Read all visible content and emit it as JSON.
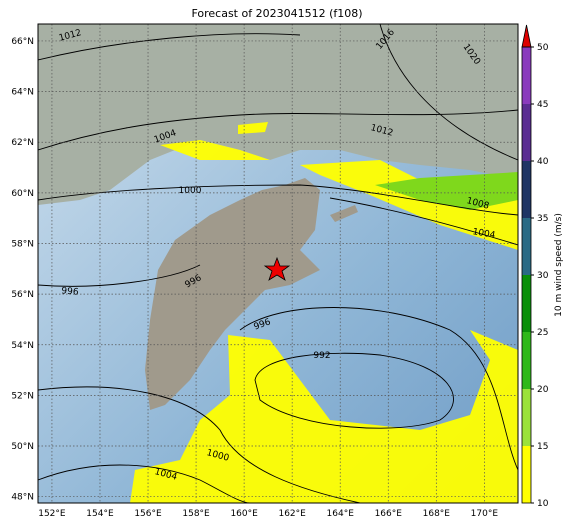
{
  "title": "Forecast of 2023041512 (f108)",
  "map": {
    "lon_range": [
      151.42,
      171.4
    ],
    "lat_range": [
      47.75,
      66.67
    ],
    "lon_ticks": [
      {
        "value": 152,
        "label": "152°E"
      },
      {
        "value": 154,
        "label": "154°E"
      },
      {
        "value": 156,
        "label": "156°E"
      },
      {
        "value": 158,
        "label": "158°E"
      },
      {
        "value": 160,
        "label": "160°E"
      },
      {
        "value": 162,
        "label": "162°E"
      },
      {
        "value": 164,
        "label": "164°E"
      },
      {
        "value": 166,
        "label": "166°E"
      },
      {
        "value": 168,
        "label": "168°E"
      },
      {
        "value": 170,
        "label": "170°E"
      }
    ],
    "lat_ticks": [
      {
        "value": 48,
        "label": "48°N"
      },
      {
        "value": 50,
        "label": "50°N"
      },
      {
        "value": 52,
        "label": "52°N"
      },
      {
        "value": 54,
        "label": "54°N"
      },
      {
        "value": 56,
        "label": "56°N"
      },
      {
        "value": 58,
        "label": "58°N"
      },
      {
        "value": 60,
        "label": "60°N"
      },
      {
        "value": 62,
        "label": "62°N"
      },
      {
        "value": 64,
        "label": "64°N"
      },
      {
        "value": 66,
        "label": "66°N"
      }
    ]
  },
  "colorbar": {
    "label": "10 m wind speed (m/s)",
    "ticks": [
      10,
      15,
      20,
      25,
      30,
      35,
      40,
      45,
      50
    ],
    "colors": [
      "#ffff00",
      "#9be23a",
      "#2fb81a",
      "#0a8f0a",
      "#2a6a85",
      "#1f3565",
      "#5a2d92",
      "#8a3bbd"
    ],
    "extend_color": "#dd0000"
  },
  "contour_labels": [
    "1012",
    "1016",
    "1020",
    "1004",
    "1012",
    "1000",
    "1008",
    "1004",
    "996",
    "996",
    "996",
    "992",
    "1000",
    "1004"
  ]
}
